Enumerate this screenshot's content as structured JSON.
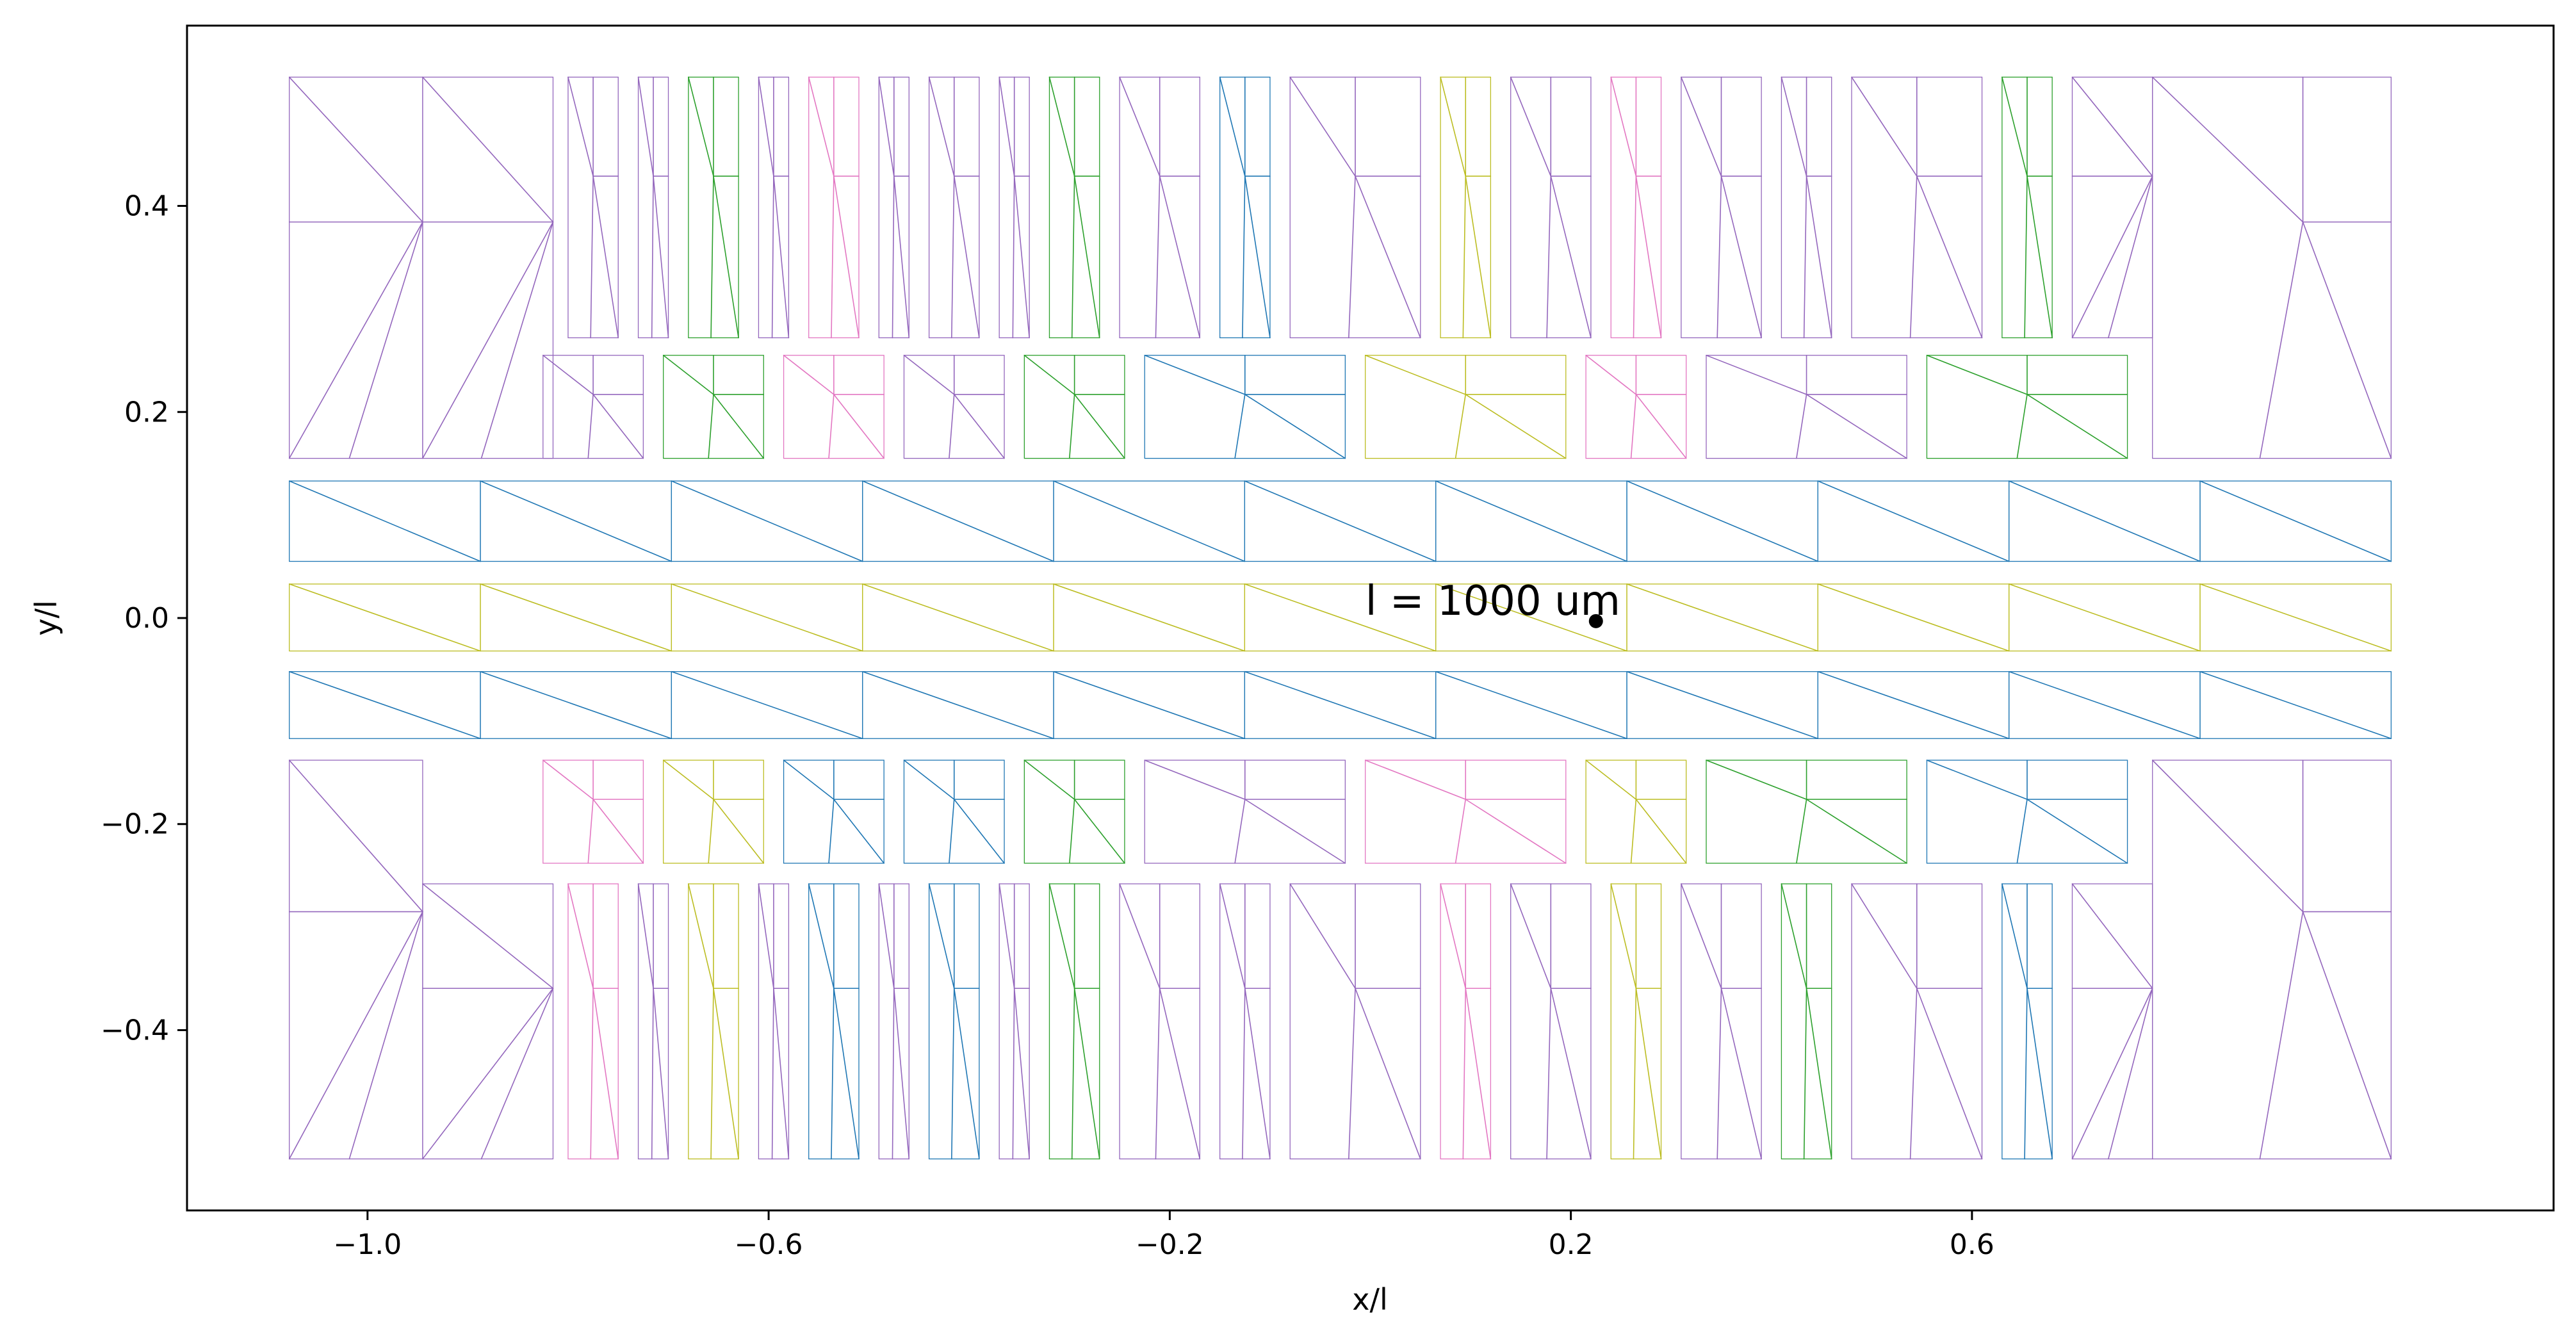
{
  "chart_data": {
    "type": "mesh",
    "xlabel": "x/l",
    "ylabel": "y/l",
    "xlim": [
      -1.18,
      1.18
    ],
    "ylim": [
      -0.575,
      0.575
    ],
    "x_ticks": [
      -1.0,
      -0.6,
      -0.2,
      0.2,
      0.6
    ],
    "x_tick_labels": [
      "−1.0",
      "−0.6",
      "−0.2",
      "0.2",
      "0.6"
    ],
    "y_ticks": [
      -0.4,
      -0.2,
      0.0,
      0.2,
      0.4
    ],
    "y_tick_labels": [
      "−0.4",
      "−0.2",
      "0.0",
      "0.2",
      "0.4"
    ],
    "annotation": {
      "text": "l = 1000 um",
      "point": [
        0.225,
        -0.003
      ]
    },
    "colors": {
      "purple": "#9467bd",
      "blue": "#1f77b4",
      "green": "#2ca02c",
      "pink": "#e377c2",
      "olive": "#bcbd22"
    },
    "strips": {
      "x_start": -1.078,
      "x_end": 1.018,
      "segments": 11,
      "rows": [
        {
          "color": "blue",
          "y_bottom": 0.055,
          "y_top": 0.133
        },
        {
          "color": "olive",
          "y_bottom": -0.032,
          "y_top": 0.033
        },
        {
          "color": "blue",
          "y_bottom": -0.117,
          "y_top": -0.052
        }
      ]
    },
    "cells": [
      {
        "color": "purple",
        "y0": 0.155,
        "y1": 0.525,
        "x0": -1.078,
        "x1": -0.945,
        "xm": -0.945
      },
      {
        "color": "purple",
        "y0": 0.155,
        "y1": 0.525,
        "x0": -0.945,
        "x1": -0.815,
        "xm": -0.815
      },
      {
        "color": "purple",
        "y0": 0.272,
        "y1": 0.525,
        "x0": -0.8,
        "x1": -0.75,
        "xm": -0.775
      },
      {
        "color": "purple",
        "y0": 0.272,
        "y1": 0.525,
        "x0": -0.73,
        "x1": -0.7,
        "xm": -0.715
      },
      {
        "color": "green",
        "y0": 0.272,
        "y1": 0.525,
        "x0": -0.68,
        "x1": -0.63,
        "xm": -0.655
      },
      {
        "color": "purple",
        "y0": 0.272,
        "y1": 0.525,
        "x0": -0.61,
        "x1": -0.58,
        "xm": -0.595
      },
      {
        "color": "pink",
        "y0": 0.272,
        "y1": 0.525,
        "x0": -0.56,
        "x1": -0.51,
        "xm": -0.535
      },
      {
        "color": "purple",
        "y0": 0.272,
        "y1": 0.525,
        "x0": -0.49,
        "x1": -0.46,
        "xm": -0.475
      },
      {
        "color": "purple",
        "y0": 0.272,
        "y1": 0.525,
        "x0": -0.44,
        "x1": -0.39,
        "xm": -0.415
      },
      {
        "color": "purple",
        "y0": 0.272,
        "y1": 0.525,
        "x0": -0.37,
        "x1": -0.34,
        "xm": -0.355
      },
      {
        "color": "green",
        "y0": 0.272,
        "y1": 0.525,
        "x0": -0.32,
        "x1": -0.27,
        "xm": -0.295
      },
      {
        "color": "purple",
        "y0": 0.272,
        "y1": 0.525,
        "x0": -0.25,
        "x1": -0.17,
        "xm": -0.21
      },
      {
        "color": "blue",
        "y0": 0.272,
        "y1": 0.525,
        "x0": -0.15,
        "x1": -0.1,
        "xm": -0.125
      },
      {
        "color": "purple",
        "y0": 0.272,
        "y1": 0.525,
        "x0": -0.08,
        "x1": 0.05,
        "xm": -0.015
      },
      {
        "color": "olive",
        "y0": 0.272,
        "y1": 0.525,
        "x0": 0.07,
        "x1": 0.12,
        "xm": 0.095
      },
      {
        "color": "purple",
        "y0": 0.272,
        "y1": 0.525,
        "x0": 0.14,
        "x1": 0.22,
        "xm": 0.18
      },
      {
        "color": "pink",
        "y0": 0.272,
        "y1": 0.525,
        "x0": 0.24,
        "x1": 0.29,
        "xm": 0.265
      },
      {
        "color": "purple",
        "y0": 0.272,
        "y1": 0.525,
        "x0": 0.31,
        "x1": 0.39,
        "xm": 0.35
      },
      {
        "color": "purple",
        "y0": 0.272,
        "y1": 0.525,
        "x0": 0.41,
        "x1": 0.46,
        "xm": 0.435
      },
      {
        "color": "purple",
        "y0": 0.272,
        "y1": 0.525,
        "x0": 0.48,
        "x1": 0.61,
        "xm": 0.545
      },
      {
        "color": "green",
        "y0": 0.272,
        "y1": 0.525,
        "x0": 0.63,
        "x1": 0.68,
        "xm": 0.655
      },
      {
        "color": "purple",
        "y0": 0.272,
        "y1": 0.525,
        "x0": 0.7,
        "x1": 0.78,
        "xm": 0.78
      },
      {
        "color": "purple",
        "y0": 0.155,
        "y1": 0.525,
        "x0": 0.78,
        "x1": 1.018,
        "xm": 0.93
      },
      {
        "color": "purple",
        "y0": 0.155,
        "y1": 0.255,
        "x0": -0.825,
        "x1": -0.725,
        "xm": -0.775
      },
      {
        "color": "green",
        "y0": 0.155,
        "y1": 0.255,
        "x0": -0.705,
        "x1": -0.605,
        "xm": -0.655
      },
      {
        "color": "pink",
        "y0": 0.155,
        "y1": 0.255,
        "x0": -0.585,
        "x1": -0.485,
        "xm": -0.535
      },
      {
        "color": "purple",
        "y0": 0.155,
        "y1": 0.255,
        "x0": -0.465,
        "x1": -0.365,
        "xm": -0.415
      },
      {
        "color": "green",
        "y0": 0.155,
        "y1": 0.255,
        "x0": -0.345,
        "x1": -0.245,
        "xm": -0.295
      },
      {
        "color": "blue",
        "y0": 0.155,
        "y1": 0.255,
        "x0": -0.225,
        "x1": -0.025,
        "xm": -0.125
      },
      {
        "color": "olive",
        "y0": 0.155,
        "y1": 0.255,
        "x0": -0.005,
        "x1": 0.195,
        "xm": 0.095
      },
      {
        "color": "pink",
        "y0": 0.155,
        "y1": 0.255,
        "x0": 0.215,
        "x1": 0.315,
        "xm": 0.265
      },
      {
        "color": "purple",
        "y0": 0.155,
        "y1": 0.255,
        "x0": 0.335,
        "x1": 0.535,
        "xm": 0.435
      },
      {
        "color": "green",
        "y0": 0.155,
        "y1": 0.255,
        "x0": 0.555,
        "x1": 0.755,
        "xm": 0.655
      },
      {
        "color": "purple",
        "y0": -0.525,
        "y1": -0.138,
        "x0": -1.078,
        "x1": -0.945,
        "xm": -0.945
      },
      {
        "color": "purple",
        "y0": -0.525,
        "y1": -0.258,
        "x0": -0.945,
        "x1": -0.815,
        "xm": -0.815
      },
      {
        "color": "pink",
        "y0": -0.238,
        "y1": -0.138,
        "x0": -0.825,
        "x1": -0.725,
        "xm": -0.775
      },
      {
        "color": "olive",
        "y0": -0.238,
        "y1": -0.138,
        "x0": -0.705,
        "x1": -0.605,
        "xm": -0.655
      },
      {
        "color": "blue",
        "y0": -0.238,
        "y1": -0.138,
        "x0": -0.585,
        "x1": -0.485,
        "xm": -0.535
      },
      {
        "color": "blue",
        "y0": -0.238,
        "y1": -0.138,
        "x0": -0.465,
        "x1": -0.365,
        "xm": -0.415
      },
      {
        "color": "green",
        "y0": -0.238,
        "y1": -0.138,
        "x0": -0.345,
        "x1": -0.245,
        "xm": -0.295
      },
      {
        "color": "purple",
        "y0": -0.238,
        "y1": -0.138,
        "x0": -0.225,
        "x1": -0.025,
        "xm": -0.125
      },
      {
        "color": "pink",
        "y0": -0.238,
        "y1": -0.138,
        "x0": -0.005,
        "x1": 0.195,
        "xm": 0.095
      },
      {
        "color": "olive",
        "y0": -0.238,
        "y1": -0.138,
        "x0": 0.215,
        "x1": 0.315,
        "xm": 0.265
      },
      {
        "color": "green",
        "y0": -0.238,
        "y1": -0.138,
        "x0": 0.335,
        "x1": 0.535,
        "xm": 0.435
      },
      {
        "color": "blue",
        "y0": -0.238,
        "y1": -0.138,
        "x0": 0.555,
        "x1": 0.755,
        "xm": 0.655
      },
      {
        "color": "pink",
        "y0": -0.525,
        "y1": -0.258,
        "x0": -0.8,
        "x1": -0.75,
        "xm": -0.775
      },
      {
        "color": "purple",
        "y0": -0.525,
        "y1": -0.258,
        "x0": -0.73,
        "x1": -0.7,
        "xm": -0.715
      },
      {
        "color": "olive",
        "y0": -0.525,
        "y1": -0.258,
        "x0": -0.68,
        "x1": -0.63,
        "xm": -0.655
      },
      {
        "color": "purple",
        "y0": -0.525,
        "y1": -0.258,
        "x0": -0.61,
        "x1": -0.58,
        "xm": -0.595
      },
      {
        "color": "blue",
        "y0": -0.525,
        "y1": -0.258,
        "x0": -0.56,
        "x1": -0.51,
        "xm": -0.535
      },
      {
        "color": "purple",
        "y0": -0.525,
        "y1": -0.258,
        "x0": -0.49,
        "x1": -0.46,
        "xm": -0.475
      },
      {
        "color": "blue",
        "y0": -0.525,
        "y1": -0.258,
        "x0": -0.44,
        "x1": -0.39,
        "xm": -0.415
      },
      {
        "color": "purple",
        "y0": -0.525,
        "y1": -0.258,
        "x0": -0.37,
        "x1": -0.34,
        "xm": -0.355
      },
      {
        "color": "green",
        "y0": -0.525,
        "y1": -0.258,
        "x0": -0.32,
        "x1": -0.27,
        "xm": -0.295
      },
      {
        "color": "purple",
        "y0": -0.525,
        "y1": -0.258,
        "x0": -0.25,
        "x1": -0.17,
        "xm": -0.21
      },
      {
        "color": "purple",
        "y0": -0.525,
        "y1": -0.258,
        "x0": -0.15,
        "x1": -0.1,
        "xm": -0.125
      },
      {
        "color": "purple",
        "y0": -0.525,
        "y1": -0.258,
        "x0": -0.08,
        "x1": 0.05,
        "xm": -0.015
      },
      {
        "color": "pink",
        "y0": -0.525,
        "y1": -0.258,
        "x0": 0.07,
        "x1": 0.12,
        "xm": 0.095
      },
      {
        "color": "purple",
        "y0": -0.525,
        "y1": -0.258,
        "x0": 0.14,
        "x1": 0.22,
        "xm": 0.18
      },
      {
        "color": "olive",
        "y0": -0.525,
        "y1": -0.258,
        "x0": 0.24,
        "x1": 0.29,
        "xm": 0.265
      },
      {
        "color": "purple",
        "y0": -0.525,
        "y1": -0.258,
        "x0": 0.31,
        "x1": 0.39,
        "xm": 0.35
      },
      {
        "color": "green",
        "y0": -0.525,
        "y1": -0.258,
        "x0": 0.41,
        "x1": 0.46,
        "xm": 0.435
      },
      {
        "color": "purple",
        "y0": -0.525,
        "y1": -0.258,
        "x0": 0.48,
        "x1": 0.61,
        "xm": 0.545
      },
      {
        "color": "blue",
        "y0": -0.525,
        "y1": -0.258,
        "x0": 0.63,
        "x1": 0.68,
        "xm": 0.655
      },
      {
        "color": "purple",
        "y0": -0.525,
        "y1": -0.258,
        "x0": 0.7,
        "x1": 0.78,
        "xm": 0.78
      },
      {
        "color": "purple",
        "y0": -0.525,
        "y1": -0.138,
        "x0": 0.78,
        "x1": 1.018,
        "xm": 0.93
      }
    ]
  }
}
